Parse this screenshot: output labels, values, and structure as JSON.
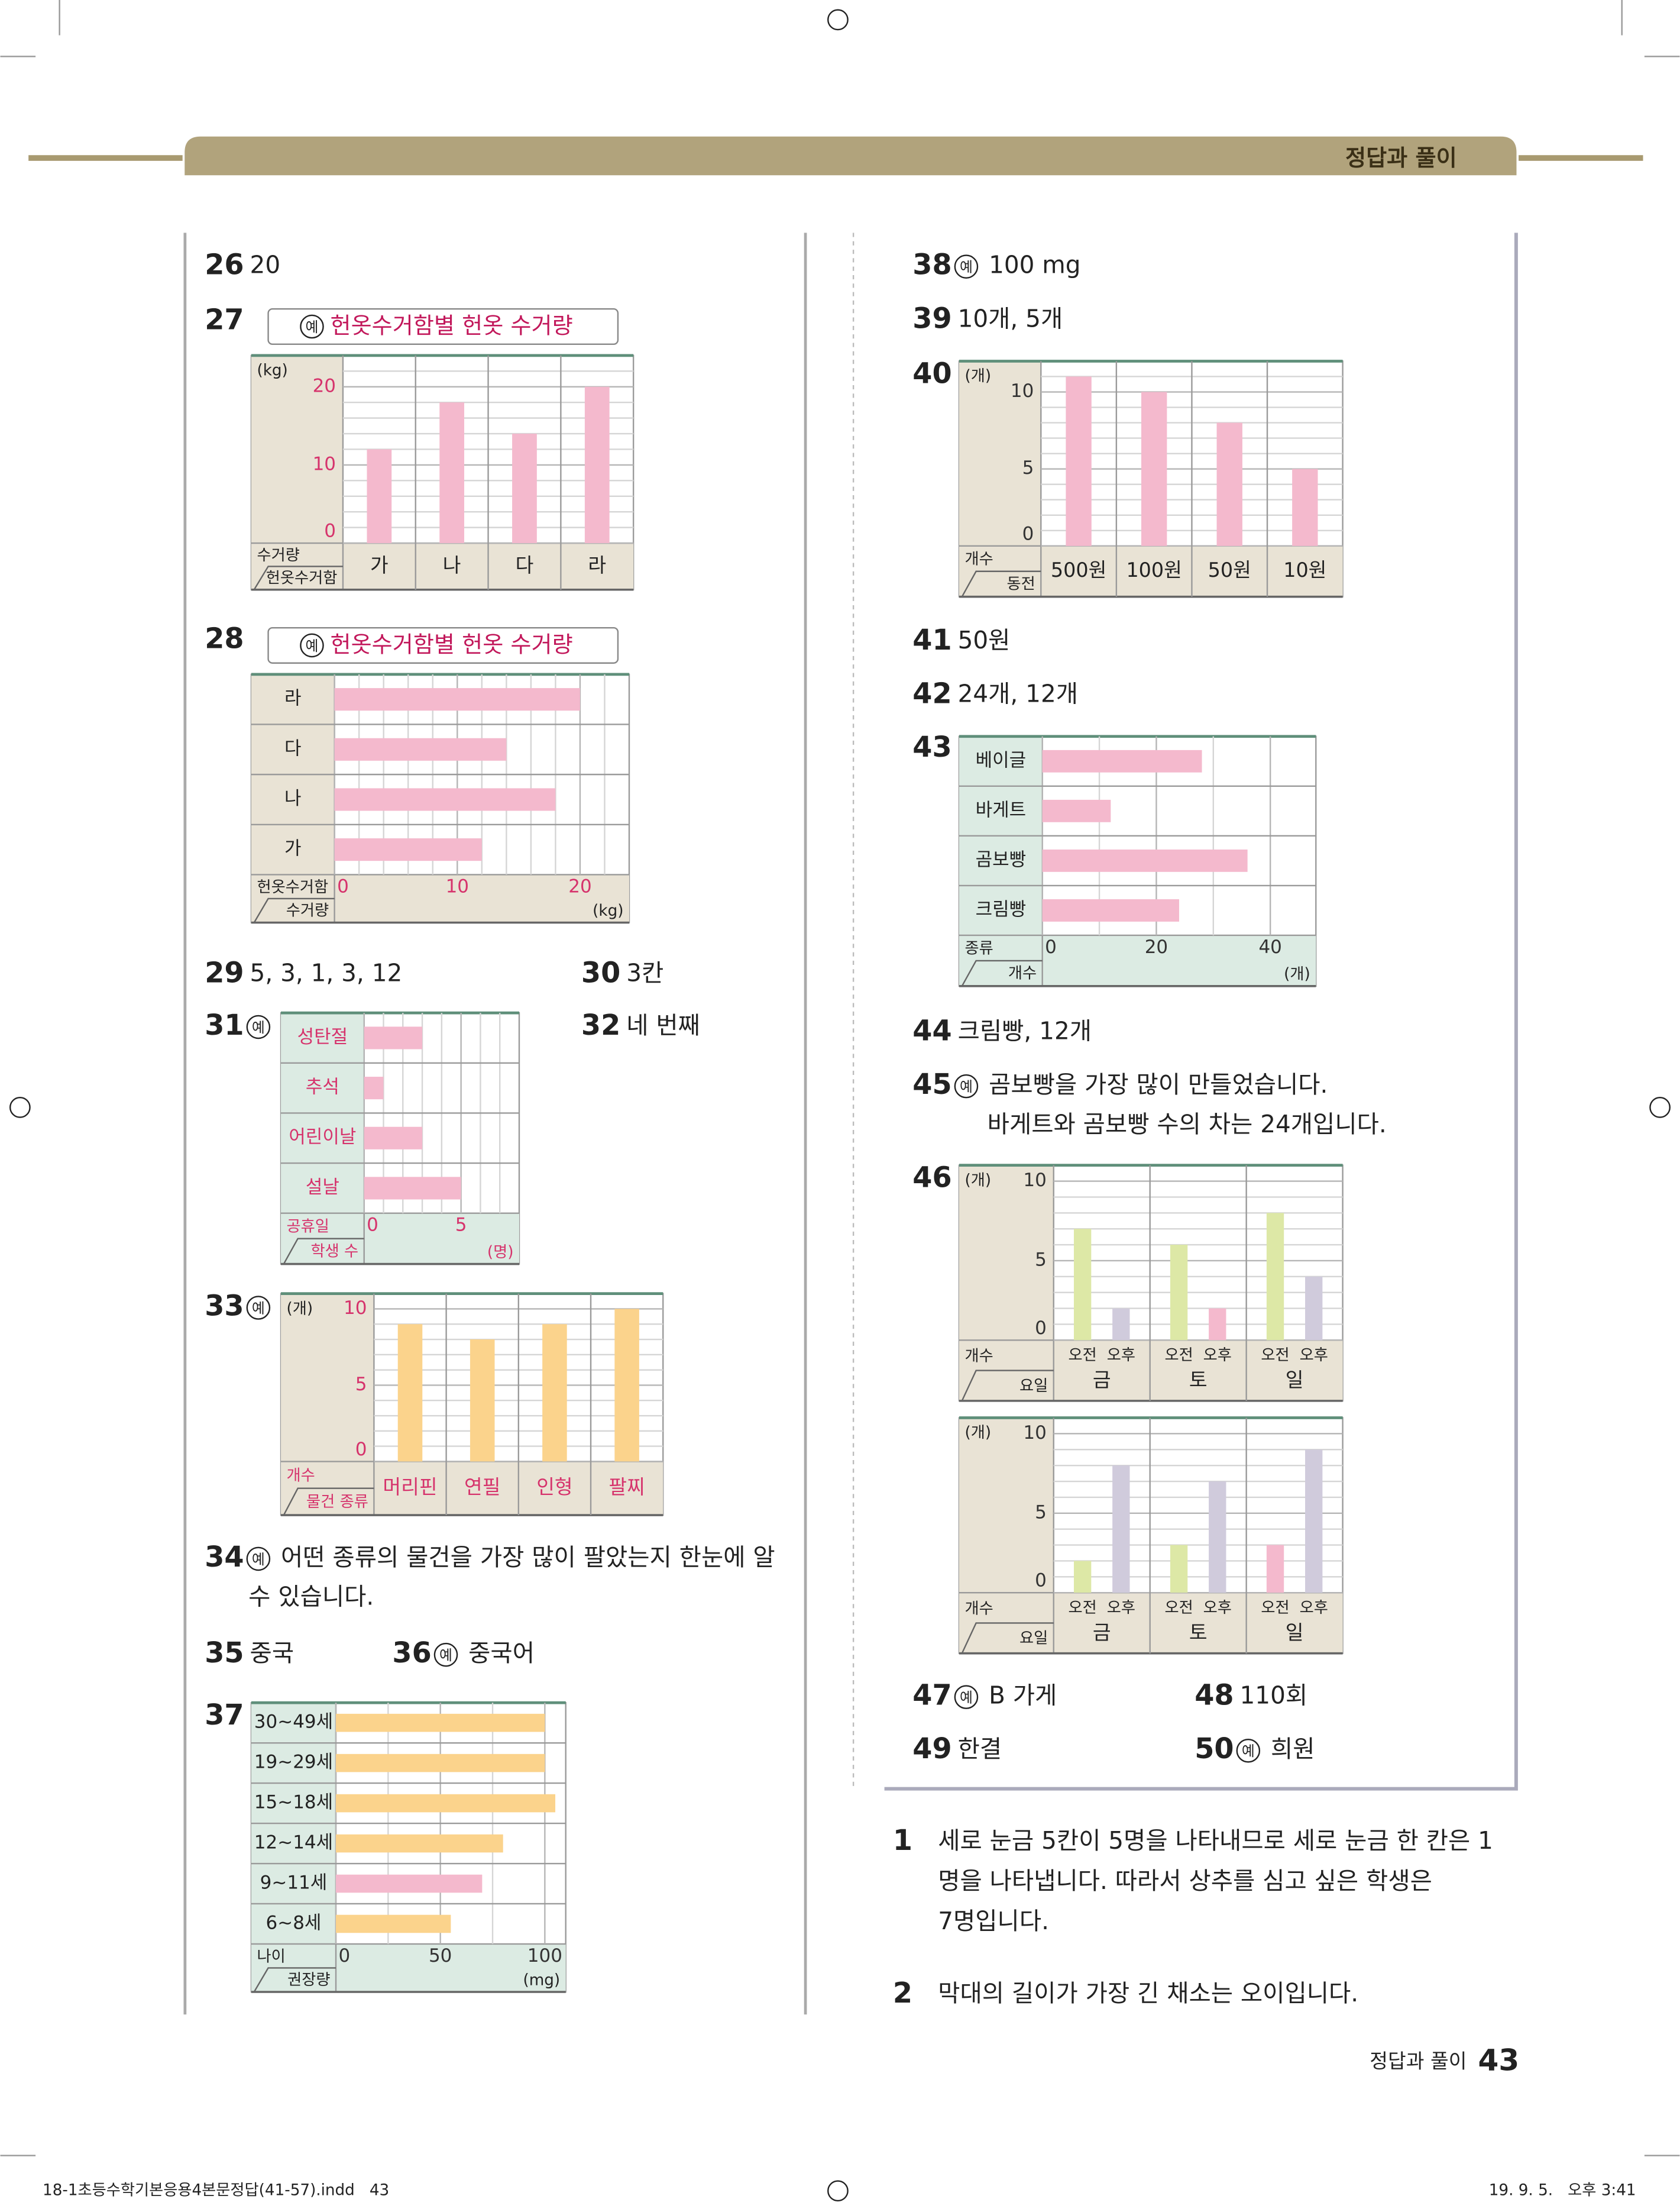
{
  "header": {
    "section": "정답과 풀이"
  },
  "footer": {
    "label": "정답과 풀이",
    "page": "43",
    "file": "18-1초등수학기본응용4본문정답(41-57).indd   43",
    "date": "19. 9. 5.   오후 3:41"
  },
  "answers": [
    {
      "number": "26",
      "lines": [
        "20"
      ]
    },
    {
      "number": "29",
      "lines": [
        "5, 3, 1, 3, 12"
      ]
    },
    {
      "number": "30",
      "lines": [
        "3칸"
      ]
    },
    {
      "number": "32",
      "lines": [
        "네 번째"
      ]
    },
    {
      "number": "34",
      "mark": "예",
      "lines": [
        "어떤 종류의 물건을 가장 많이 팔았는지 한눈에 알",
        "수 있습니다."
      ]
    },
    {
      "number": "35",
      "lines": [
        "중국"
      ]
    },
    {
      "number": "36",
      "mark": "예",
      "lines": [
        "중국어"
      ]
    },
    {
      "number": "38",
      "mark": "예",
      "lines": [
        "100 mg"
      ]
    },
    {
      "number": "39",
      "lines": [
        "10개, 5개"
      ]
    },
    {
      "number": "41",
      "lines": [
        "50원"
      ]
    },
    {
      "number": "42",
      "lines": [
        "24개, 12개"
      ]
    },
    {
      "number": "44",
      "lines": [
        "크림빵, 12개"
      ]
    },
    {
      "number": "45",
      "mark": "예",
      "lines": [
        "곰보빵을 가장 많이 만들었습니다.",
        "바게트와 곰보빵 수의 차는 24개입니다."
      ]
    },
    {
      "number": "47",
      "mark": "예",
      "lines": [
        "B 가게"
      ]
    },
    {
      "number": "48",
      "lines": [
        "110회"
      ]
    },
    {
      "number": "49",
      "lines": [
        "한결"
      ]
    },
    {
      "number": "50",
      "mark": "예",
      "lines": [
        "희원"
      ]
    }
  ],
  "charts": [
    {
      "number": "27",
      "type": "bar",
      "mark": "예",
      "title": "헌옷수거함별 헌옷 수거량",
      "unit": "(kg)",
      "value_axis_label": "수거량",
      "category_axis_label": "헌옷수거함",
      "categories": [
        "가",
        "나",
        "다",
        "라"
      ],
      "values": [
        12,
        18,
        14,
        20
      ],
      "ylim": [
        0,
        24
      ],
      "yticks": [
        0,
        10,
        20
      ],
      "gridlines": [
        2,
        4,
        6,
        8,
        12,
        14,
        16,
        18,
        22
      ],
      "color": "#f4b9cd",
      "panel_color": "#e9e3d5",
      "tick_color": "#d6336c"
    },
    {
      "number": "28",
      "type": "hbar",
      "mark": "예",
      "title": "헌옷수거함별 헌옷 수거량",
      "unit": "(kg)",
      "value_axis_label": "수거량",
      "category_axis_label": "헌옷수거함",
      "categories": [
        "라",
        "다",
        "나",
        "가"
      ],
      "values": [
        20,
        14,
        18,
        12
      ],
      "xlim": [
        0,
        24
      ],
      "xticks": [
        0,
        10,
        20
      ],
      "gridlines": [
        2,
        4,
        6,
        8,
        12,
        14,
        16,
        18,
        22
      ],
      "color": "#f4b9cd",
      "panel_color": "#e9e3d5",
      "tick_color": "#d6336c"
    },
    {
      "number": "31",
      "type": "hbar",
      "mark": "예",
      "unit": "(명)",
      "value_axis_label": "학생 수",
      "category_axis_label": "공휴일",
      "categories": [
        "성탄절",
        "추석",
        "어린이날",
        "설날"
      ],
      "values": [
        3,
        1,
        3,
        5
      ],
      "xlim": [
        0,
        8
      ],
      "xticks": [
        0,
        5
      ],
      "gridlines": [
        1,
        2,
        3,
        4,
        6,
        7
      ],
      "color": "#f4b9cd",
      "panel_color": "#dcebe3",
      "tick_color": "#d6336c",
      "label_color": "#d6336c"
    },
    {
      "number": "33",
      "type": "bar",
      "mark": "예",
      "unit": "(개)",
      "value_axis_label": "개수",
      "category_axis_label": "물건 종류",
      "categories": [
        "머리핀",
        "연필",
        "인형",
        "팔찌"
      ],
      "values": [
        9,
        8,
        9,
        10
      ],
      "ylim": [
        0,
        11
      ],
      "yticks": [
        0,
        5,
        10
      ],
      "gridlines": [
        1,
        2,
        3,
        4,
        6,
        7,
        8,
        9
      ],
      "color": "#fbd38c",
      "panel_color": "#e9e3d5",
      "tick_color": "#d6336c",
      "label_color": "#d6336c"
    },
    {
      "number": "37",
      "type": "hbar",
      "unit": "(mg)",
      "value_axis_label": "권장량",
      "category_axis_label": "나이",
      "categories": [
        "30~49세",
        "19~29세",
        "15~18세",
        "12~14세",
        "9~11세",
        "6~8세"
      ],
      "values": [
        100,
        100,
        105,
        80,
        70,
        55
      ],
      "xlim": [
        0,
        110
      ],
      "xticks": [
        0,
        50,
        100
      ],
      "gridlines": [
        25,
        75
      ],
      "colors": [
        "#fbd38c",
        "#fbd38c",
        "#fbd38c",
        "#fbd38c",
        "#f4b9cd",
        "#fbd38c"
      ],
      "panel_color": "#dcebe3",
      "tick_color": "#333333"
    },
    {
      "number": "40",
      "type": "bar",
      "unit": "(개)",
      "value_axis_label": "개수",
      "category_axis_label": "동전",
      "categories": [
        "500원",
        "100원",
        "50원",
        "10원"
      ],
      "values": [
        11,
        10,
        8,
        5
      ],
      "ylim": [
        0,
        12
      ],
      "yticks": [
        0,
        5,
        10
      ],
      "gridlines": [
        1,
        2,
        3,
        4,
        6,
        7,
        8,
        9,
        11
      ],
      "color": "#f4b9cd",
      "panel_color": "#e9e3d5",
      "tick_color": "#333333"
    },
    {
      "number": "43",
      "type": "hbar",
      "unit": "(개)",
      "value_axis_label": "개수",
      "category_axis_label": "종류",
      "categories": [
        "베이글",
        "바게트",
        "곰보빵",
        "크림빵"
      ],
      "values": [
        28,
        12,
        36,
        24
      ],
      "xlim": [
        0,
        48
      ],
      "xticks": [
        0,
        20,
        40
      ],
      "gridlines": [
        10,
        30
      ],
      "color": "#f4b9cd",
      "panel_color": "#dcebe3",
      "tick_color": "#333333"
    },
    {
      "number": "46",
      "type": "grouped_bar",
      "unit": "(개)",
      "value_axis_label": "개수",
      "category_axis_label": "요일",
      "categories": [
        "금",
        "토",
        "일"
      ],
      "series": [
        {
          "name": "오전",
          "values": [
            7,
            6,
            8
          ],
          "colors": [
            "#dde8a6",
            "#dde8a6",
            "#dde8a6"
          ]
        },
        {
          "name": "오후",
          "values": [
            2,
            2,
            4
          ],
          "colors": [
            "#d0cbdc",
            "#f4b9cd",
            "#d0cbdc"
          ]
        }
      ],
      "ylim": [
        0,
        11
      ],
      "yticks": [
        0,
        5,
        10
      ],
      "gridlines": [
        1,
        2,
        3,
        4,
        6,
        7,
        8,
        9
      ],
      "panel_color": "#e9e3d5",
      "tick_color": "#333333"
    },
    {
      "type": "grouped_bar",
      "unit": "(개)",
      "value_axis_label": "개수",
      "category_axis_label": "요일",
      "categories": [
        "금",
        "토",
        "일"
      ],
      "series": [
        {
          "name": "오전",
          "values": [
            2,
            3,
            3
          ],
          "colors": [
            "#dde8a6",
            "#dde8a6",
            "#f4b9cd"
          ]
        },
        {
          "name": "오후",
          "values": [
            8,
            7,
            9
          ],
          "colors": [
            "#d0cbdc",
            "#d0cbdc",
            "#d0cbdc"
          ]
        }
      ],
      "ylim": [
        0,
        11
      ],
      "yticks": [
        0,
        5,
        10
      ],
      "gridlines": [
        1,
        2,
        3,
        4,
        6,
        7,
        8,
        9
      ],
      "panel_color": "#e9e3d5",
      "tick_color": "#333333"
    }
  ],
  "explanations": [
    {
      "number": "1",
      "lines": [
        "세로 눈금 5칸이 5명을 나타내므로 세로 눈금 한 칸은 1",
        "명을 나타냅니다. 따라서 상추를 심고 싶은 학생은",
        "7명입니다."
      ]
    },
    {
      "number": "2",
      "lines": [
        "막대의 길이가 가장 긴 채소는 오이입니다."
      ]
    }
  ]
}
